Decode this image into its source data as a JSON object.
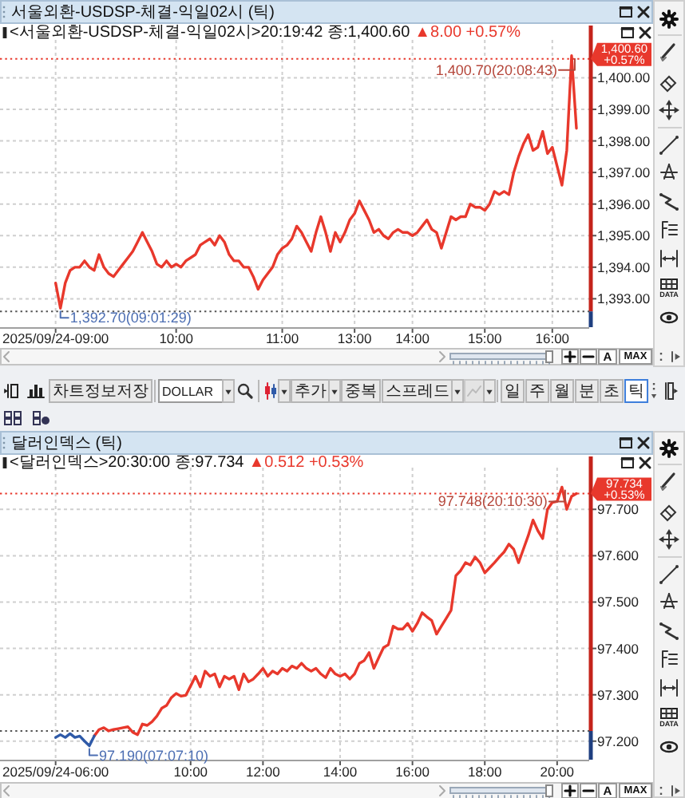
{
  "chart_data": [
    {
      "type": "line",
      "title": "서울외환-USDSP-체결-익일02시 (틱)",
      "subtitle": "<서울외환-USDSP-체결-익일02시>20:19:42 종:1,400.60",
      "annotations": [
        "▲8.00 +0.57%",
        "1,400.70(20:08:43)",
        "1,392.70(09:01:29)"
      ],
      "categories": [
        "2025/09/24-09:00",
        null,
        null,
        null,
        null,
        null,
        null,
        null,
        null,
        null,
        null,
        null,
        null,
        null,
        null,
        null,
        null,
        null,
        null,
        null,
        null,
        null,
        null,
        null,
        null,
        "10:00",
        null,
        null,
        null,
        null,
        null,
        null,
        null,
        null,
        null,
        null,
        null,
        null,
        null,
        null,
        null,
        null,
        null,
        null,
        null,
        null,
        null,
        "11:00",
        null,
        null,
        null,
        null,
        null,
        null,
        null,
        null,
        null,
        null,
        null,
        null,
        null,
        null,
        "13:00",
        null,
        null,
        null,
        null,
        null,
        null,
        null,
        null,
        null,
        null,
        null,
        "14:00",
        null,
        null,
        null,
        null,
        null,
        null,
        null,
        null,
        null,
        null,
        null,
        null,
        null,
        null,
        "15:00",
        null,
        null,
        null,
        null,
        null,
        null,
        null,
        null,
        null,
        null,
        null,
        null,
        null,
        "16:00",
        null,
        null,
        null,
        null,
        null
      ],
      "series": [
        {
          "color": "#e8382c",
          "values": [
            1393.5,
            1392.7,
            1393.5,
            1393.9,
            1394.0,
            1394.0,
            1394.2,
            1394.0,
            1393.9,
            1394.4,
            1394.0,
            1393.8,
            1393.7,
            1393.9,
            1394.1,
            1394.3,
            1394.5,
            1394.8,
            1395.1,
            1394.8,
            1394.5,
            1394.1,
            1394.0,
            1394.2,
            1394.0,
            1394.1,
            1394.0,
            1394.2,
            1394.3,
            1394.4,
            1394.7,
            1394.8,
            1394.9,
            1394.7,
            1395.0,
            1394.8,
            1394.4,
            1394.2,
            1394.2,
            1394.0,
            1394.0,
            1393.7,
            1393.3,
            1393.6,
            1393.8,
            1394.0,
            1394.4,
            1394.6,
            1394.7,
            1394.9,
            1395.3,
            1395.1,
            1394.8,
            1394.5,
            1395.1,
            1395.6,
            1395.1,
            1394.5,
            1395.1,
            1394.8,
            1395.1,
            1395.5,
            1395.7,
            1396.1,
            1395.8,
            1395.5,
            1395.1,
            1395.2,
            1395.0,
            1394.9,
            1395.1,
            1395.2,
            1395.1,
            1395.1,
            1395.0,
            1395.1,
            1395.3,
            1395.5,
            1395.2,
            1395.1,
            1394.6,
            1395.1,
            1395.6,
            1395.5,
            1395.6,
            1395.6,
            1396.0,
            1395.9,
            1395.9,
            1395.8,
            1396.0,
            1396.4,
            1396.3,
            1396.4,
            1396.3,
            1397.0,
            1397.5,
            1397.9,
            1398.2,
            1397.7,
            1397.8,
            1398.3,
            1397.6,
            1397.8,
            1397.2,
            1396.6,
            1397.7,
            1400.7,
            1398.4
          ]
        }
      ],
      "ylim": [
        1392.1,
        1401.2
      ],
      "yticks": [
        {
          "value": 1393,
          "label": "1,393.00"
        },
        {
          "value": 1394,
          "label": "1,394.00"
        },
        {
          "value": 1395,
          "label": "1,395.00"
        },
        {
          "value": 1396,
          "label": "1,396.00"
        },
        {
          "value": 1397,
          "label": "1,397.00"
        },
        {
          "value": 1398,
          "label": "1,398.00"
        },
        {
          "value": 1399,
          "label": "1,399.00"
        },
        {
          "value": 1400,
          "label": "1,400.00"
        }
      ],
      "grid": true,
      "ref_lines": [
        {
          "axis": "y",
          "value": 1392.6,
          "label": null,
          "line_style": "dotted",
          "color": "#555555"
        },
        {
          "axis": "y",
          "value": 1400.6,
          "label": "1,400.60\n+0.57%",
          "line_style": "dotted",
          "color": "#e8382c"
        }
      ]
    },
    {
      "type": "other",
      "annotations": [
        "A",
        "MAX",
        "DATA"
      ]
    },
    {
      "type": "other",
      "annotations": [
        "차트정보저장",
        "DOLLAR",
        "추가",
        "중복",
        "스프레드",
        "일",
        "주",
        "월",
        "분",
        "초",
        "틱"
      ]
    },
    {
      "type": "line",
      "title": "달러인덱스 (틱)",
      "subtitle": "<달러인덱스>20:30:00 종:97.734",
      "annotations": [
        "▲0.512 +0.53%",
        "97.748(20:10:30)",
        "97.190(07:07:10)"
      ],
      "categories": [
        "2025/09/24-06:00",
        null,
        null,
        null,
        null,
        null,
        null,
        null,
        null,
        null,
        null,
        null,
        null,
        null,
        null,
        null,
        null,
        null,
        null,
        null,
        null,
        null,
        null,
        null,
        null,
        null,
        null,
        null,
        "10:00",
        null,
        null,
        null,
        null,
        null,
        null,
        null,
        null,
        null,
        null,
        null,
        null,
        null,
        null,
        "12:00",
        null,
        null,
        null,
        null,
        null,
        null,
        null,
        null,
        null,
        null,
        null,
        null,
        null,
        null,
        null,
        "14:00",
        null,
        null,
        null,
        null,
        null,
        null,
        null,
        null,
        null,
        null,
        null,
        null,
        null,
        null,
        "16:00",
        null,
        null,
        null,
        null,
        null,
        null,
        null,
        null,
        null,
        null,
        null,
        null,
        null,
        null,
        "18:00",
        null,
        null,
        null,
        null,
        null,
        null,
        null,
        null,
        null,
        null,
        null,
        null,
        null,
        null,
        "20:00",
        null,
        null,
        null,
        null
      ],
      "series": [
        {
          "color": "#e8382c",
          "values": [
            null,
            null,
            null,
            null,
            null,
            null,
            null,
            null,
            97.211,
            97.225,
            97.229,
            97.222,
            97.225,
            97.227,
            97.229,
            97.231,
            97.219,
            97.214,
            97.237,
            97.234,
            97.242,
            97.254,
            97.271,
            97.277,
            97.294,
            97.303,
            97.297,
            97.299,
            97.319,
            97.34,
            97.317,
            97.351,
            97.34,
            97.345,
            97.317,
            97.34,
            97.334,
            97.34,
            97.311,
            97.345,
            97.328,
            97.334,
            97.345,
            97.357,
            97.34,
            97.351,
            97.345,
            97.357,
            97.351,
            97.362,
            97.357,
            97.368,
            97.357,
            97.351,
            97.357,
            97.345,
            97.337,
            97.357,
            97.345,
            97.34,
            97.345,
            97.334,
            97.345,
            97.368,
            97.374,
            97.391,
            97.357,
            97.38,
            97.402,
            97.408,
            97.448,
            97.442,
            97.442,
            97.454,
            97.437,
            97.454,
            97.477,
            97.468,
            97.46,
            97.431,
            97.448,
            97.465,
            97.482,
            97.557,
            97.568,
            97.585,
            97.58,
            97.597,
            97.585,
            97.563,
            97.574,
            97.585,
            97.597,
            97.608,
            97.625,
            97.614,
            97.585,
            97.614,
            97.643,
            97.677,
            97.654,
            97.637,
            97.7,
            97.715,
            97.717,
            97.748,
            97.7,
            97.728,
            97.734
          ]
        },
        {
          "color": "#2f5aa8",
          "values": [
            97.208,
            97.214,
            97.208,
            97.216,
            97.208,
            97.211,
            97.2,
            97.19,
            97.211,
            null,
            null,
            null,
            null,
            null,
            null,
            null,
            null,
            null,
            null,
            null,
            null,
            null,
            null,
            null,
            null,
            null,
            null,
            null,
            null,
            null,
            null,
            null,
            null,
            null,
            null,
            null,
            null,
            null,
            null,
            null,
            null,
            null,
            null,
            null,
            null,
            null,
            null,
            null,
            null,
            null,
            null,
            null,
            null,
            null,
            null,
            null,
            null,
            null,
            null,
            null,
            null,
            null,
            null,
            null,
            null,
            null,
            null,
            null,
            null,
            null,
            null,
            null,
            null,
            null,
            null,
            null,
            null,
            null,
            null,
            null,
            null,
            null,
            null,
            null,
            null,
            null,
            null,
            null,
            null,
            null,
            null,
            null,
            null,
            null,
            null,
            null,
            null,
            null,
            null,
            null,
            null,
            null,
            null,
            null,
            null,
            null,
            null,
            null,
            null
          ]
        }
      ],
      "ylim": [
        97.16,
        97.79
      ],
      "yticks": [
        {
          "value": 97.2,
          "label": "97.200"
        },
        {
          "value": 97.3,
          "label": "97.300"
        },
        {
          "value": 97.4,
          "label": "97.400"
        },
        {
          "value": 97.5,
          "label": "97.500"
        },
        {
          "value": 97.6,
          "label": "97.600"
        },
        {
          "value": 97.7,
          "label": "97.700"
        }
      ],
      "grid": true,
      "ref_lines": [
        {
          "axis": "y",
          "value": 97.222,
          "label": null,
          "line_style": "dotted",
          "color": "#555555"
        },
        {
          "axis": "y",
          "value": 97.734,
          "label": "97.734\n+0.53%",
          "line_style": "dotted",
          "color": "#e8382c"
        }
      ]
    },
    {
      "type": "other",
      "annotations": [
        "A",
        "MAX",
        "DATA"
      ]
    }
  ]
}
